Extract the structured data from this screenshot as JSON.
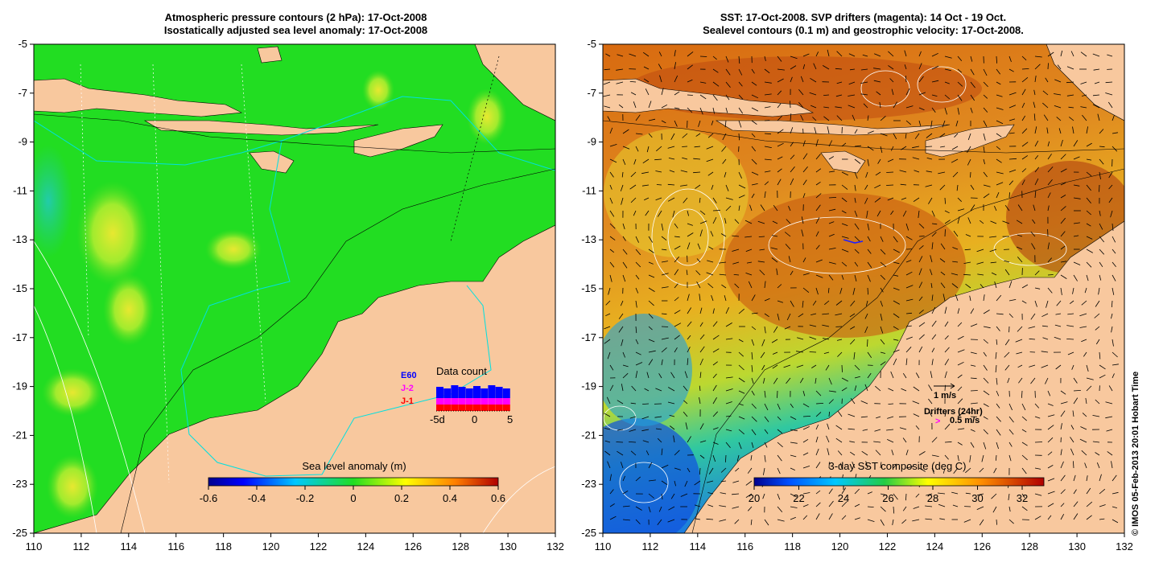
{
  "left_panel": {
    "title_line1": "Atmospheric pressure contours (2 hPa): 17-Oct-2008",
    "title_line2": "Isostatically adjusted sea level anomaly: 17-Oct-2008",
    "colorbar_label": "Sea level anomaly (m)",
    "colorbar_ticks": [
      "-0.6",
      "-0.4",
      "-0.2",
      "0",
      "0.2",
      "0.4",
      "0.6"
    ],
    "colorbar_range": [
      -0.6,
      0.6
    ],
    "data_count": {
      "title": "Data count",
      "legend": [
        "E60",
        "J-2",
        "J-1"
      ],
      "x_ticks": [
        "-5d",
        "0",
        "5"
      ],
      "legend_colors": {
        "E60": "#0000ff",
        "J-2": "#ff00ff",
        "J-1": "#ff0000"
      }
    }
  },
  "right_panel": {
    "title_line1": "SST: 17-Oct-2008. SVP drifters (magenta): 14 Oct - 19 Oct.",
    "title_line2": "Sealevel contours (0.1 m) and geostrophic velocity: 17-Oct-2008.",
    "colorbar_label": "3-day SST composite (deg C)",
    "colorbar_ticks": [
      "20",
      "22",
      "24",
      "26",
      "28",
      "30",
      "32"
    ],
    "colorbar_range": [
      20,
      32.5
    ],
    "velocity_scale_label": "1 m/s",
    "drifters_label": "Drifters (24hr)",
    "drifters_scale_label": "0.5 m/s"
  },
  "axes": {
    "lat_ticks": [
      "-5",
      "-7",
      "-9",
      "-11",
      "-13",
      "-15",
      "-17",
      "-19",
      "-21",
      "-23",
      "-25"
    ],
    "lon_ticks": [
      "110",
      "112",
      "114",
      "116",
      "118",
      "120",
      "122",
      "124",
      "126",
      "128",
      "130",
      "132"
    ],
    "lon_range": [
      110,
      132
    ],
    "lat_range": [
      -25,
      -5
    ]
  },
  "credit": "© IMOS 05-Feb-2013 20:01 Hobart Time",
  "colors": {
    "land": "#f8c89e",
    "sla_field": "#22dd22",
    "sst_warm": "#e07a10",
    "sst_cool": "#2a8fe0"
  }
}
